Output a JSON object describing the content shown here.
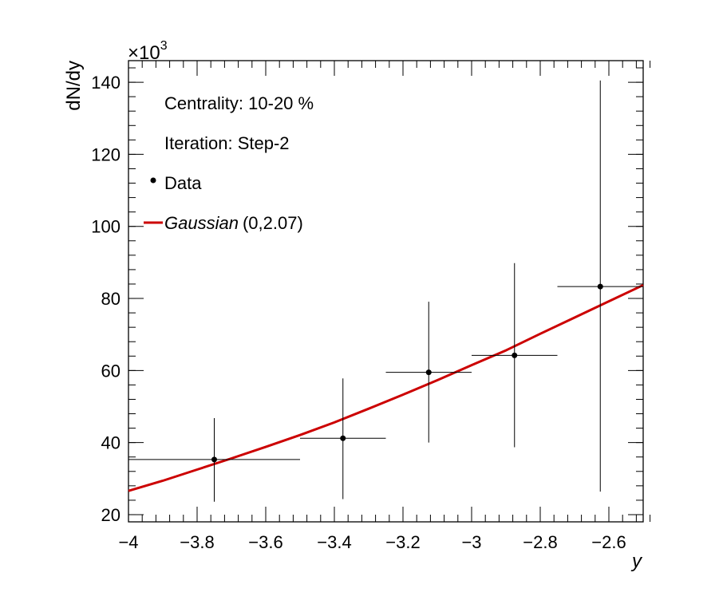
{
  "chart_data": {
    "type": "scatter",
    "xlabel": "y",
    "ylabel": "dN/dy",
    "y_multiplier": "×10",
    "y_multiplier_exp": "3",
    "xlim": [
      -4.0,
      -2.5
    ],
    "ylim": [
      18,
      146
    ],
    "x_ticks": [
      -4.0,
      -3.8,
      -3.6,
      -3.4,
      -3.2,
      -3.0,
      -2.8,
      -2.6
    ],
    "x_tick_labels": [
      "−4",
      "−3.8",
      "−3.6",
      "−3.4",
      "−3.2",
      "−3",
      "−2.8",
      "−2.6"
    ],
    "y_ticks": [
      20,
      40,
      60,
      80,
      100,
      120,
      140
    ],
    "y_tick_labels": [
      "20",
      "40",
      "60",
      "80",
      "100",
      "120",
      "140"
    ],
    "annotations": [
      "Centrality: 10-20 %",
      "Iteration: Step-2"
    ],
    "series": [
      {
        "name": "Data",
        "kind": "points",
        "color": "#000000",
        "points": [
          {
            "x": -3.75,
            "xlo": -4.0,
            "xhi": -3.5,
            "y": 35.3,
            "ylo": 23.6,
            "yhi": 46.8
          },
          {
            "x": -3.375,
            "xlo": -3.5,
            "xhi": -3.25,
            "y": 41.2,
            "ylo": 24.3,
            "yhi": 57.8
          },
          {
            "x": -3.125,
            "xlo": -3.25,
            "xhi": -3.0,
            "y": 59.5,
            "ylo": 40.0,
            "yhi": 79.1
          },
          {
            "x": -2.875,
            "xlo": -3.0,
            "xhi": -2.75,
            "y": 64.2,
            "ylo": 38.7,
            "yhi": 89.8
          },
          {
            "x": -2.625,
            "xlo": -2.75,
            "xhi": -2.5,
            "y": 83.3,
            "ylo": 26.4,
            "yhi": 140.5
          }
        ]
      },
      {
        "name": "Gaussian",
        "name_suffix": "(0,2.07)",
        "kind": "line",
        "color": "#cc0000",
        "x": [
          -4.0,
          -3.9,
          -3.8,
          -3.7,
          -3.6,
          -3.5,
          -3.4,
          -3.3,
          -3.2,
          -3.1,
          -3.0,
          -2.9,
          -2.8,
          -2.7,
          -2.6,
          -2.5
        ],
        "y": [
          26.6,
          29.4,
          32.5,
          35.6,
          38.8,
          42.1,
          45.6,
          49.4,
          53.3,
          57.3,
          61.5,
          65.6,
          70.2,
          74.7,
          79.2,
          83.7
        ]
      }
    ]
  }
}
